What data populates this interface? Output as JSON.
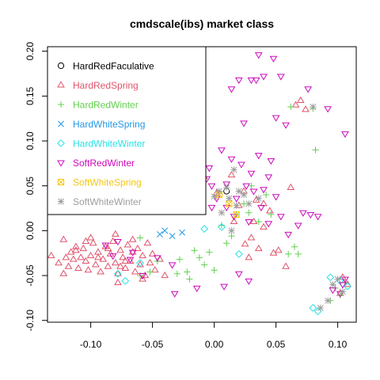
{
  "chart_data": {
    "type": "scatter",
    "title": "cmdscale(ibs) market class",
    "xlabel": "",
    "ylabel": "",
    "xlim": [
      -0.135,
      0.115
    ],
    "ylim": [
      -0.102,
      0.205
    ],
    "xticks": [
      -0.1,
      -0.05,
      0.0,
      0.05,
      0.1
    ],
    "xtick_labels": [
      "-0.10",
      "-0.05",
      "0.00",
      "0.05",
      "0.10"
    ],
    "yticks": [
      -0.1,
      -0.05,
      0.0,
      0.05,
      0.1,
      0.15,
      0.2
    ],
    "ytick_labels": [
      "-0.10",
      "-0.05",
      "0.00",
      "0.05",
      "0.10",
      "0.15",
      "0.20"
    ],
    "grid": false,
    "legend_position": "top-left",
    "series": [
      {
        "name": "HardRedFaculative",
        "color": "#000000",
        "symbol": "circle",
        "points": [
          [
            0.01,
            0.044
          ]
        ]
      },
      {
        "name": "HardRedSpring",
        "color": "#DF536B",
        "symbol": "triangle-up",
        "points": [
          [
            -0.132,
            -0.028
          ],
          [
            -0.126,
            -0.036
          ],
          [
            -0.122,
            -0.048
          ],
          [
            -0.12,
            -0.03
          ],
          [
            -0.118,
            -0.04
          ],
          [
            -0.116,
            -0.024
          ],
          [
            -0.114,
            -0.032
          ],
          [
            -0.112,
            -0.018
          ],
          [
            -0.11,
            -0.042
          ],
          [
            -0.108,
            -0.03
          ],
          [
            -0.106,
            -0.02
          ],
          [
            -0.104,
            -0.034
          ],
          [
            -0.102,
            -0.044
          ],
          [
            -0.1,
            -0.028
          ],
          [
            -0.098,
            -0.014
          ],
          [
            -0.096,
            -0.038
          ],
          [
            -0.094,
            -0.024
          ],
          [
            -0.092,
            -0.046
          ],
          [
            -0.09,
            -0.032
          ],
          [
            -0.088,
            -0.018
          ],
          [
            -0.086,
            -0.04
          ],
          [
            -0.084,
            -0.026
          ],
          [
            -0.082,
            -0.012
          ],
          [
            -0.08,
            -0.036
          ],
          [
            -0.078,
            -0.048
          ],
          [
            -0.076,
            -0.022
          ],
          [
            -0.074,
            -0.03
          ],
          [
            -0.072,
            -0.042
          ],
          [
            -0.07,
            -0.016
          ],
          [
            -0.068,
            -0.034
          ],
          [
            -0.066,
            -0.024
          ],
          [
            -0.064,
            -0.046
          ],
          [
            -0.062,
            -0.02
          ],
          [
            -0.06,
            -0.038
          ],
          [
            -0.058,
            -0.028
          ],
          [
            -0.056,
            -0.05
          ],
          [
            -0.054,
            -0.014
          ],
          [
            -0.052,
            -0.036
          ],
          [
            -0.05,
            -0.026
          ],
          [
            -0.048,
            -0.044
          ],
          [
            -0.044,
            -0.032
          ],
          [
            -0.04,
            -0.05
          ],
          [
            -0.112,
            -0.022
          ],
          [
            -0.104,
            -0.012
          ],
          [
            -0.094,
            -0.03
          ],
          [
            -0.086,
            -0.02
          ],
          [
            -0.076,
            -0.04
          ],
          [
            -0.066,
            -0.01
          ],
          [
            -0.058,
            -0.054
          ],
          [
            -0.078,
            -0.058
          ],
          [
            -0.1,
            -0.008
          ],
          [
            -0.122,
            -0.01
          ],
          [
            -0.072,
            -0.034
          ],
          [
            -0.08,
            -0.004
          ],
          [
            0.07,
            0.145
          ],
          [
            0.066,
            0.14
          ],
          [
            0.074,
            0.135
          ],
          [
            0.062,
            0.048
          ],
          [
            0.048,
            -0.025
          ],
          [
            0.058,
            -0.04
          ],
          [
            0.052,
            -0.022
          ],
          [
            0.104,
            -0.052
          ],
          [
            0.108,
            -0.06
          ],
          [
            0.102,
            -0.07
          ],
          [
            0.036,
            -0.02
          ],
          [
            0.045,
            0.022
          ],
          [
            0.032,
            0.01
          ],
          [
            0.025,
            -0.015
          ],
          [
            0.02,
            0.028
          ],
          [
            0.034,
            0.034
          ],
          [
            0.04,
            0.004
          ],
          [
            0.03,
            -0.008
          ],
          [
            0.024,
            0.044
          ],
          [
            0.016,
            0.01
          ],
          [
            0.028,
            -0.03
          ],
          [
            0.002,
            0.042
          ],
          [
            -0.008,
            0.06
          ],
          [
            0.04,
            0.03
          ],
          [
            0.014,
            0.062
          ]
        ]
      },
      {
        "name": "HardRedWinter",
        "color": "#61D04F",
        "symbol": "plus",
        "points": [
          [
            0.062,
            0.138
          ],
          [
            0.08,
            0.136
          ],
          [
            0.082,
            0.09
          ],
          [
            0.06,
            -0.026
          ],
          [
            0.065,
            -0.018
          ],
          [
            0.068,
            -0.026
          ],
          [
            0.098,
            -0.064
          ],
          [
            0.102,
            -0.072
          ],
          [
            0.106,
            -0.058
          ],
          [
            0.094,
            -0.078
          ],
          [
            -0.046,
            -0.034
          ],
          [
            -0.052,
            -0.046
          ],
          [
            -0.06,
            -0.05
          ],
          [
            -0.028,
            -0.032
          ],
          [
            -0.022,
            -0.046
          ],
          [
            -0.016,
            -0.022
          ],
          [
            -0.012,
            -0.03
          ],
          [
            -0.008,
            -0.038
          ],
          [
            -0.004,
            -0.024
          ],
          [
            0.0,
            -0.044
          ],
          [
            -0.02,
            -0.054
          ],
          [
            0.01,
            -0.014
          ],
          [
            0.014,
            -0.006
          ],
          [
            0.018,
            0.018
          ],
          [
            0.024,
            0.03
          ],
          [
            0.028,
            0.02
          ],
          [
            0.036,
            0.01
          ],
          [
            0.046,
            0.018
          ],
          [
            0.042,
            0.04
          ],
          [
            0.03,
            0.05
          ],
          [
            -0.03,
            -0.048
          ],
          [
            0.006,
            0.006
          ],
          [
            -0.06,
            -0.008
          ]
        ]
      },
      {
        "name": "HardWhiteSpring",
        "color": "#2297E6",
        "symbol": "x",
        "points": [
          [
            -0.044,
            -0.004
          ],
          [
            -0.04,
            0.0
          ],
          [
            -0.034,
            -0.006
          ],
          [
            -0.026,
            -0.002
          ]
        ]
      },
      {
        "name": "HardWhiteWinter",
        "color": "#28E2E5",
        "symbol": "diamond",
        "points": [
          [
            -0.078,
            -0.048
          ],
          [
            -0.072,
            -0.056
          ],
          [
            -0.06,
            -0.036
          ],
          [
            -0.008,
            0.002
          ],
          [
            0.006,
            0.004
          ],
          [
            0.02,
            -0.026
          ],
          [
            0.08,
            -0.086
          ],
          [
            0.084,
            -0.09
          ],
          [
            0.094,
            -0.052
          ],
          [
            0.102,
            -0.056
          ],
          [
            0.108,
            -0.062
          ]
        ]
      },
      {
        "name": "SoftRedWinter",
        "color": "#CD0BBC",
        "symbol": "triangle-down",
        "points": [
          [
            0.036,
            0.196
          ],
          [
            0.048,
            0.192
          ],
          [
            0.054,
            0.172
          ],
          [
            0.04,
            0.172
          ],
          [
            0.03,
            0.168
          ],
          [
            0.034,
            0.168
          ],
          [
            0.02,
            0.168
          ],
          [
            0.014,
            0.158
          ],
          [
            0.076,
            0.158
          ],
          [
            0.092,
            0.136
          ],
          [
            0.05,
            0.126
          ],
          [
            0.058,
            0.118
          ],
          [
            0.106,
            0.108
          ],
          [
            0.024,
            0.12
          ],
          [
            0.036,
            0.084
          ],
          [
            0.014,
            0.08
          ],
          [
            0.006,
            0.09
          ],
          [
            -0.004,
            0.07
          ],
          [
            0.022,
            0.074
          ],
          [
            0.03,
            0.064
          ],
          [
            0.046,
            0.078
          ],
          [
            0.032,
            0.044
          ],
          [
            0.04,
            0.046
          ],
          [
            0.026,
            0.05
          ],
          [
            0.018,
            0.036
          ],
          [
            0.044,
            0.06
          ],
          [
            0.05,
            0.038
          ],
          [
            0.054,
            0.016
          ],
          [
            0.038,
            0.026
          ],
          [
            0.028,
            0.01
          ],
          [
            0.06,
            -0.004
          ],
          [
            0.072,
            0.02
          ],
          [
            0.078,
            0.018
          ],
          [
            0.084,
            0.016
          ],
          [
            0.068,
            0.006
          ],
          [
            -0.006,
            0.058
          ],
          [
            -0.002,
            0.05
          ],
          [
            0.002,
            0.036
          ],
          [
            0.01,
            0.026
          ],
          [
            0.016,
            0.016
          ],
          [
            -0.068,
            -0.032
          ],
          [
            -0.058,
            -0.05
          ],
          [
            -0.046,
            -0.03
          ],
          [
            -0.034,
            -0.038
          ],
          [
            -0.014,
            -0.064
          ],
          [
            -0.032,
            -0.07
          ],
          [
            -0.082,
            -0.028
          ],
          [
            -0.088,
            -0.016
          ],
          [
            -0.078,
            -0.012
          ],
          [
            -0.066,
            -0.024
          ],
          [
            0.02,
            -0.048
          ],
          [
            0.028,
            -0.056
          ],
          [
            0.008,
            -0.062
          ],
          [
            0.104,
            -0.06
          ],
          [
            0.102,
            -0.07
          ],
          [
            0.106,
            -0.054
          ],
          [
            0.096,
            -0.066
          ],
          [
            0.01,
            0.052
          ],
          [
            0.044,
            0.008
          ],
          [
            -0.002,
            0.026
          ]
        ]
      },
      {
        "name": "SoftWhiteSpring",
        "color": "#F5C710",
        "symbol": "boxed-x",
        "points": [
          [
            0.004,
            0.04
          ],
          [
            0.012,
            0.03
          ],
          [
            0.018,
            0.018
          ]
        ]
      },
      {
        "name": "SoftWhiteWinter",
        "color": "#9E9E9E",
        "symbol": "asterisk",
        "points": [
          [
            0.01,
            0.048
          ],
          [
            0.004,
            0.044
          ],
          [
            0.0,
            0.038
          ],
          [
            0.012,
            0.036
          ],
          [
            0.016,
            0.068
          ],
          [
            0.02,
            0.044
          ],
          [
            0.024,
            0.04
          ],
          [
            0.028,
            0.03
          ],
          [
            0.018,
            0.028
          ],
          [
            0.014,
            0.0
          ],
          [
            0.08,
            0.138
          ],
          [
            0.086,
            -0.086
          ],
          [
            0.092,
            -0.078
          ],
          [
            0.096,
            -0.06
          ],
          [
            0.1,
            -0.054
          ],
          [
            0.104,
            -0.068
          ],
          [
            0.036,
            0.036
          ],
          [
            0.006,
            0.02
          ]
        ]
      }
    ]
  }
}
